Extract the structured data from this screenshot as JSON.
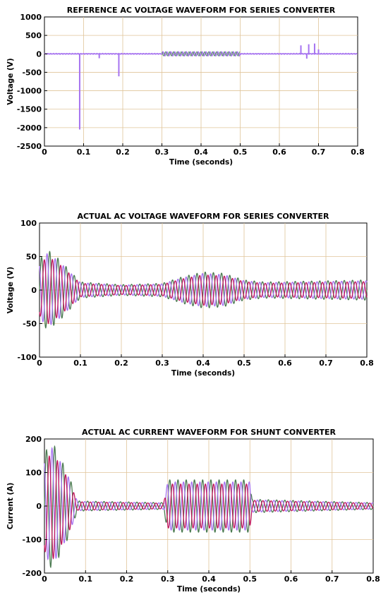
{
  "chart_data": [
    {
      "type": "line",
      "title": "REFERENCE AC VOLTAGE WAVEFORM FOR SERIES CONVERTER",
      "xlabel": "Time (seconds)",
      "ylabel": "Voltage (V)",
      "xlim": [
        0,
        0.8
      ],
      "ylim": [
        -2500,
        1000
      ],
      "xticks": [
        "0",
        "0.1",
        "0.2",
        "0.3",
        "0.4",
        "0.5",
        "0.6",
        "0.7",
        "0.8"
      ],
      "yticks": [
        "1000",
        "500",
        "0",
        "-500",
        "-1000",
        "-1500",
        "-2000",
        "-2500"
      ],
      "grid": true,
      "colors": [
        "#a673f0",
        "#4a8a5a"
      ],
      "spikes": [
        {
          "x": 0.09,
          "y": -2050
        },
        {
          "x": 0.14,
          "y": -120
        },
        {
          "x": 0.19,
          "y": -610
        },
        {
          "x": 0.655,
          "y": 230
        },
        {
          "x": 0.67,
          "y": -130
        },
        {
          "x": 0.675,
          "y": 260
        },
        {
          "x": 0.69,
          "y": 280
        },
        {
          "x": 0.7,
          "y": 120
        }
      ],
      "oscillation": {
        "x_start": 0.3,
        "x_end": 0.5,
        "amplitude": 55,
        "frequency_hz": 50
      }
    },
    {
      "type": "line",
      "title": "ACTUAL AC VOLTAGE WAVEFORM FOR SERIES CONVERTER",
      "xlabel": "Time (seconds)",
      "ylabel": "Voltage (V)",
      "xlim": [
        0,
        0.8
      ],
      "ylim": [
        -100,
        100
      ],
      "xticks": [
        "0",
        "0.1",
        "0.2",
        "0.3",
        "0.4",
        "0.5",
        "0.6",
        "0.7",
        "0.8"
      ],
      "yticks": [
        "100",
        "50",
        "0",
        "-50",
        "-100"
      ],
      "grid": true,
      "frequency_hz": 50,
      "phases": [
        {
          "color": "#4a7a50",
          "phase_deg": 0
        },
        {
          "color": "#a673f0",
          "phase_deg": 120
        },
        {
          "color": "#c0195e",
          "phase_deg": 240
        }
      ],
      "envelope": [
        [
          0,
          45
        ],
        [
          0.02,
          60
        ],
        [
          0.05,
          45
        ],
        [
          0.08,
          25
        ],
        [
          0.1,
          12
        ],
        [
          0.2,
          8
        ],
        [
          0.3,
          10
        ],
        [
          0.35,
          20
        ],
        [
          0.4,
          27
        ],
        [
          0.45,
          25
        ],
        [
          0.5,
          15
        ],
        [
          0.55,
          12
        ],
        [
          0.8,
          15
        ]
      ]
    },
    {
      "type": "line",
      "title": "ACTUAL AC CURRENT WAVEFORM FOR SHUNT CONVERTER",
      "xlabel": "Time (seconds)",
      "ylabel": "Current (A)",
      "xlim": [
        0,
        0.8
      ],
      "ylim": [
        -200,
        200
      ],
      "xticks": [
        "0",
        "0.1",
        "0.2",
        "0.3",
        "0.4",
        "0.5",
        "0.6",
        "0.7",
        "0.8"
      ],
      "yticks": [
        "200",
        "100",
        "0",
        "-100",
        "-200"
      ],
      "grid": true,
      "frequency_hz": 50,
      "phases": [
        {
          "color": "#4a7a50",
          "phase_deg": 0
        },
        {
          "color": "#a673f0",
          "phase_deg": 120
        },
        {
          "color": "#c0195e",
          "phase_deg": 240
        }
      ],
      "envelope": [
        [
          0,
          160
        ],
        [
          0.02,
          190
        ],
        [
          0.04,
          140
        ],
        [
          0.06,
          90
        ],
        [
          0.08,
          15
        ],
        [
          0.29,
          10
        ],
        [
          0.3,
          78
        ],
        [
          0.5,
          78
        ],
        [
          0.505,
          20
        ],
        [
          0.8,
          10
        ]
      ]
    }
  ]
}
